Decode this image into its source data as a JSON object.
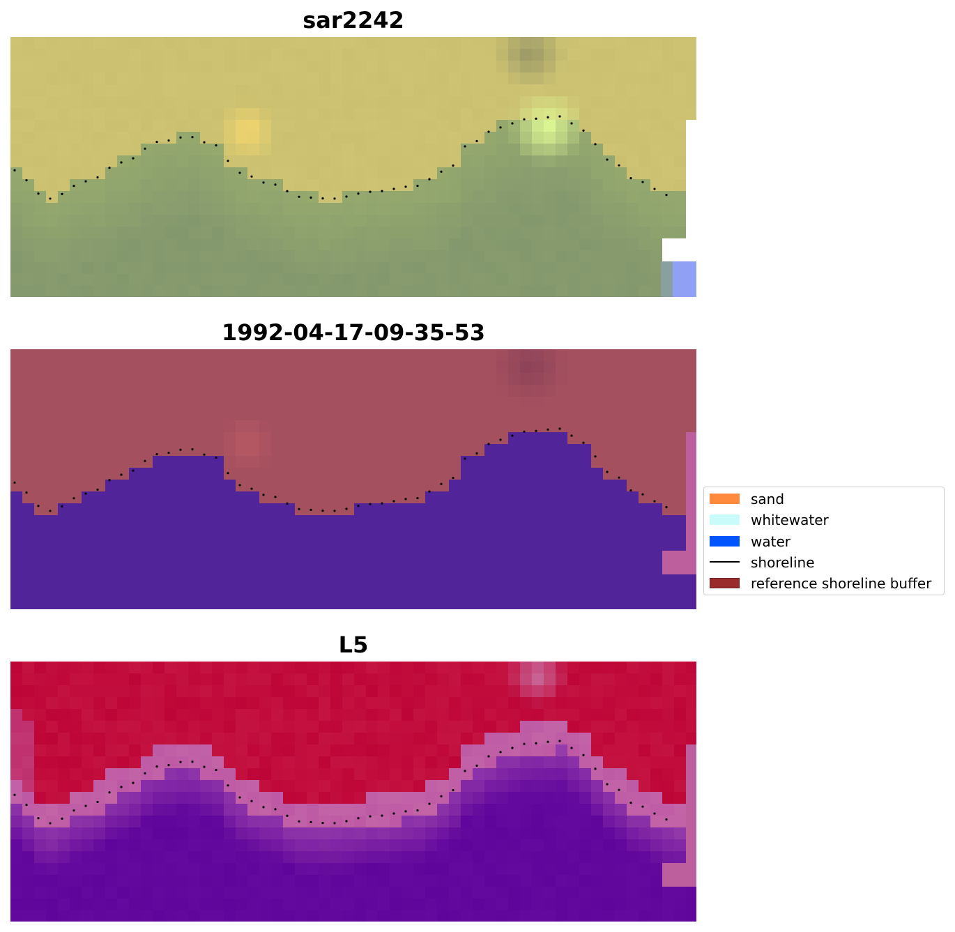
{
  "panels": [
    {
      "title": "sar2242",
      "scheme": "rgb"
    },
    {
      "title": "1992-04-17-09-35-53",
      "scheme": "classified"
    },
    {
      "title": "L5",
      "scheme": "index"
    }
  ],
  "legend": {
    "items": [
      {
        "label": "sand",
        "color": "#ff8a3d",
        "kind": "patch"
      },
      {
        "label": "whitewater",
        "color": "#c8fbf9",
        "kind": "patch"
      },
      {
        "label": "water",
        "color": "#0055ff",
        "kind": "patch"
      },
      {
        "label": "shoreline",
        "color": "#000000",
        "kind": "line"
      },
      {
        "label": "reference shoreline buffer",
        "color": "#9b2c2c",
        "kind": "patch"
      }
    ]
  },
  "colors": {
    "sand_class": "#a5505f",
    "water_class": "#52249a",
    "buffer_edge": "#bd5f9c",
    "index_land": "#bd0536",
    "index_water": "#5c059c"
  }
}
